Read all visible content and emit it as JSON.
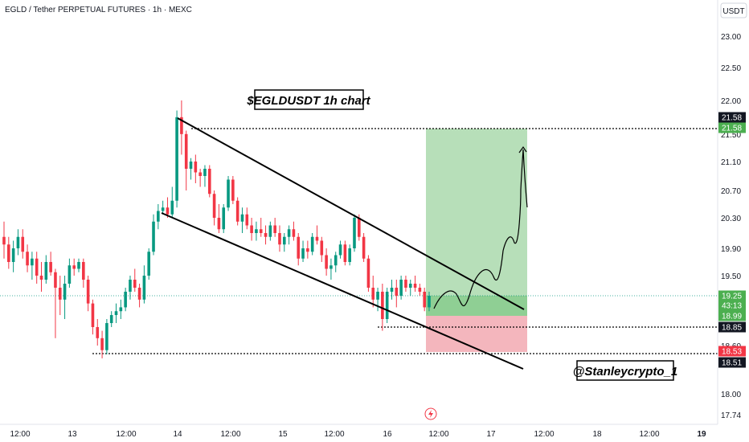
{
  "header": {
    "symbol_line": "EGLD / Tether PERPETUAL FUTURES · 1h · MEXC"
  },
  "price_axis": {
    "unit_label": "USDT",
    "ticks": [
      "23.00",
      "22.50",
      "22.00",
      "21.50",
      "21.10",
      "20.70",
      "20.30",
      "19.90",
      "19.50",
      "18.85",
      "18.60",
      "18.00",
      "17.74"
    ]
  },
  "time_axis": {
    "ticks": [
      "12:00",
      "13",
      "12:00",
      "14",
      "12:00",
      "15",
      "12:00",
      "16",
      "12:00",
      "17",
      "12:00",
      "18",
      "12:00",
      "19"
    ]
  },
  "annotations": {
    "title_box": "$EGLDUSDT 1h chart",
    "author_box": "@Stanleycrypto_1"
  },
  "price_tags": {
    "target_top": "21.58",
    "target_green": "21.58",
    "current_price": "19.25",
    "countdown": "43:13",
    "entry": "18.99",
    "level_mid": "18.85",
    "stop_red": "18.53",
    "level_low": "18.51"
  },
  "colors": {
    "bull": "#089981",
    "bear": "#f23645",
    "target_zone": "#b7dfb9",
    "stop_zone": "#f4b6bd",
    "tag_green": "#4caf50",
    "tag_red": "#f23645",
    "tag_dark": "#131722"
  },
  "chart_data": {
    "type": "candlestick",
    "title": "$EGLDUSDT 1h chart",
    "ylabel": "USDT",
    "ylim": [
      17.6,
      23.3
    ],
    "x_categories": [
      "12:00",
      "13",
      "12:00",
      "14",
      "12:00",
      "15",
      "12:00",
      "16",
      "12:00",
      "17",
      "12:00",
      "18",
      "12:00",
      "19"
    ],
    "candles": [
      [
        20.05,
        20.25,
        19.75,
        19.95
      ],
      [
        19.95,
        20.05,
        19.6,
        19.7
      ],
      [
        19.7,
        20.0,
        19.55,
        19.9
      ],
      [
        19.9,
        20.15,
        19.8,
        20.05
      ],
      [
        20.05,
        20.15,
        19.75,
        19.85
      ],
      [
        19.85,
        19.95,
        19.55,
        19.65
      ],
      [
        19.65,
        19.85,
        19.45,
        19.75
      ],
      [
        19.75,
        19.85,
        19.4,
        19.5
      ],
      [
        19.5,
        19.7,
        19.3,
        19.45
      ],
      [
        19.45,
        19.8,
        19.4,
        19.7
      ],
      [
        19.7,
        19.85,
        19.5,
        19.55
      ],
      [
        19.55,
        19.6,
        18.7,
        19.35
      ],
      [
        19.35,
        19.5,
        19.0,
        19.2
      ],
      [
        19.2,
        19.5,
        18.95,
        19.4
      ],
      [
        19.4,
        19.75,
        19.35,
        19.65
      ],
      [
        19.65,
        19.75,
        19.5,
        19.6
      ],
      [
        19.6,
        19.75,
        19.55,
        19.7
      ],
      [
        19.7,
        19.75,
        19.35,
        19.45
      ],
      [
        19.45,
        19.5,
        19.05,
        19.15
      ],
      [
        19.15,
        19.2,
        18.75,
        18.85
      ],
      [
        18.85,
        18.95,
        18.6,
        18.7
      ],
      [
        18.7,
        18.8,
        18.45,
        18.55
      ],
      [
        18.55,
        18.95,
        18.5,
        18.9
      ],
      [
        18.9,
        19.05,
        18.85,
        19.0
      ],
      [
        19.0,
        19.15,
        18.9,
        19.05
      ],
      [
        19.05,
        19.2,
        18.95,
        19.1
      ],
      [
        19.1,
        19.35,
        19.05,
        19.3
      ],
      [
        19.3,
        19.5,
        19.2,
        19.45
      ],
      [
        19.45,
        19.6,
        19.3,
        19.35
      ],
      [
        19.35,
        19.4,
        19.1,
        19.2
      ],
      [
        19.2,
        19.65,
        19.15,
        19.5
      ],
      [
        19.5,
        19.9,
        19.45,
        19.85
      ],
      [
        19.85,
        20.35,
        19.8,
        20.25
      ],
      [
        20.25,
        20.5,
        20.15,
        20.4
      ],
      [
        20.4,
        20.55,
        20.35,
        20.45
      ],
      [
        20.45,
        20.6,
        20.3,
        20.35
      ],
      [
        20.35,
        20.75,
        20.3,
        20.55
      ],
      [
        20.55,
        21.85,
        20.45,
        21.75
      ],
      [
        21.75,
        22.0,
        21.2,
        21.5
      ],
      [
        21.5,
        21.55,
        20.7,
        21.0
      ],
      [
        21.0,
        21.15,
        20.85,
        21.1
      ],
      [
        21.1,
        21.2,
        20.8,
        20.95
      ],
      [
        20.95,
        21.0,
        20.75,
        20.9
      ],
      [
        20.9,
        21.05,
        20.75,
        21.0
      ],
      [
        21.0,
        21.05,
        20.6,
        20.65
      ],
      [
        20.65,
        20.7,
        20.2,
        20.3
      ],
      [
        20.3,
        20.5,
        20.1,
        20.15
      ],
      [
        20.15,
        20.5,
        20.1,
        20.45
      ],
      [
        20.45,
        20.9,
        20.4,
        20.85
      ],
      [
        20.85,
        20.9,
        20.5,
        20.55
      ],
      [
        20.55,
        20.6,
        20.2,
        20.25
      ],
      [
        20.25,
        20.45,
        20.1,
        20.35
      ],
      [
        20.35,
        20.45,
        20.15,
        20.2
      ],
      [
        20.2,
        20.3,
        20.0,
        20.1
      ],
      [
        20.1,
        20.25,
        20.0,
        20.15
      ],
      [
        20.15,
        20.3,
        20.05,
        20.1
      ],
      [
        20.1,
        20.2,
        19.95,
        20.05
      ],
      [
        20.05,
        20.25,
        20.0,
        20.2
      ],
      [
        20.2,
        20.3,
        20.05,
        20.1
      ],
      [
        20.1,
        20.2,
        19.85,
        19.95
      ],
      [
        19.95,
        20.1,
        19.85,
        20.05
      ],
      [
        20.05,
        20.2,
        19.95,
        20.15
      ],
      [
        20.15,
        20.25,
        20.0,
        20.05
      ],
      [
        20.05,
        20.1,
        19.65,
        19.75
      ],
      [
        19.75,
        20.0,
        19.7,
        19.9
      ],
      [
        19.9,
        20.0,
        19.75,
        19.85
      ],
      [
        19.85,
        20.1,
        19.8,
        20.05
      ],
      [
        20.05,
        20.2,
        19.95,
        20.0
      ],
      [
        20.0,
        20.05,
        19.7,
        19.8
      ],
      [
        19.8,
        19.9,
        19.5,
        19.6
      ],
      [
        19.6,
        19.75,
        19.45,
        19.65
      ],
      [
        19.65,
        19.85,
        19.55,
        19.8
      ],
      [
        19.8,
        20.0,
        19.75,
        19.95
      ],
      [
        19.95,
        20.0,
        19.65,
        19.7
      ],
      [
        19.7,
        19.95,
        19.65,
        19.9
      ],
      [
        19.9,
        20.35,
        19.85,
        20.3
      ],
      [
        20.3,
        20.35,
        20.0,
        20.05
      ],
      [
        20.05,
        20.1,
        19.7,
        19.75
      ],
      [
        19.75,
        19.8,
        19.3,
        19.35
      ],
      [
        19.35,
        19.5,
        19.1,
        19.2
      ],
      [
        19.2,
        19.35,
        19.05,
        19.3
      ],
      [
        19.3,
        19.4,
        18.8,
        18.95
      ],
      [
        18.95,
        19.35,
        18.9,
        19.3
      ],
      [
        19.3,
        19.45,
        19.2,
        19.35
      ],
      [
        19.35,
        19.45,
        19.1,
        19.25
      ],
      [
        19.25,
        19.5,
        19.2,
        19.45
      ],
      [
        19.45,
        19.5,
        19.3,
        19.35
      ],
      [
        19.35,
        19.45,
        19.25,
        19.4
      ],
      [
        19.4,
        19.5,
        19.3,
        19.35
      ],
      [
        19.35,
        19.4,
        19.25,
        19.3
      ],
      [
        19.3,
        19.35,
        19.05,
        19.1
      ],
      [
        19.1,
        19.3,
        19.05,
        19.25
      ]
    ],
    "current_price": 19.25,
    "target": 21.58,
    "entry": 18.99,
    "stop": 18.53,
    "levels": [
      21.58,
      18.85,
      18.51
    ],
    "channel": {
      "upper": [
        [
          21.85,
          0
        ],
        [
          19.05,
          1
        ]
      ],
      "lower": [
        [
          20.35,
          0
        ],
        [
          18.4,
          1
        ]
      ]
    },
    "grid": false,
    "legend": "none"
  }
}
